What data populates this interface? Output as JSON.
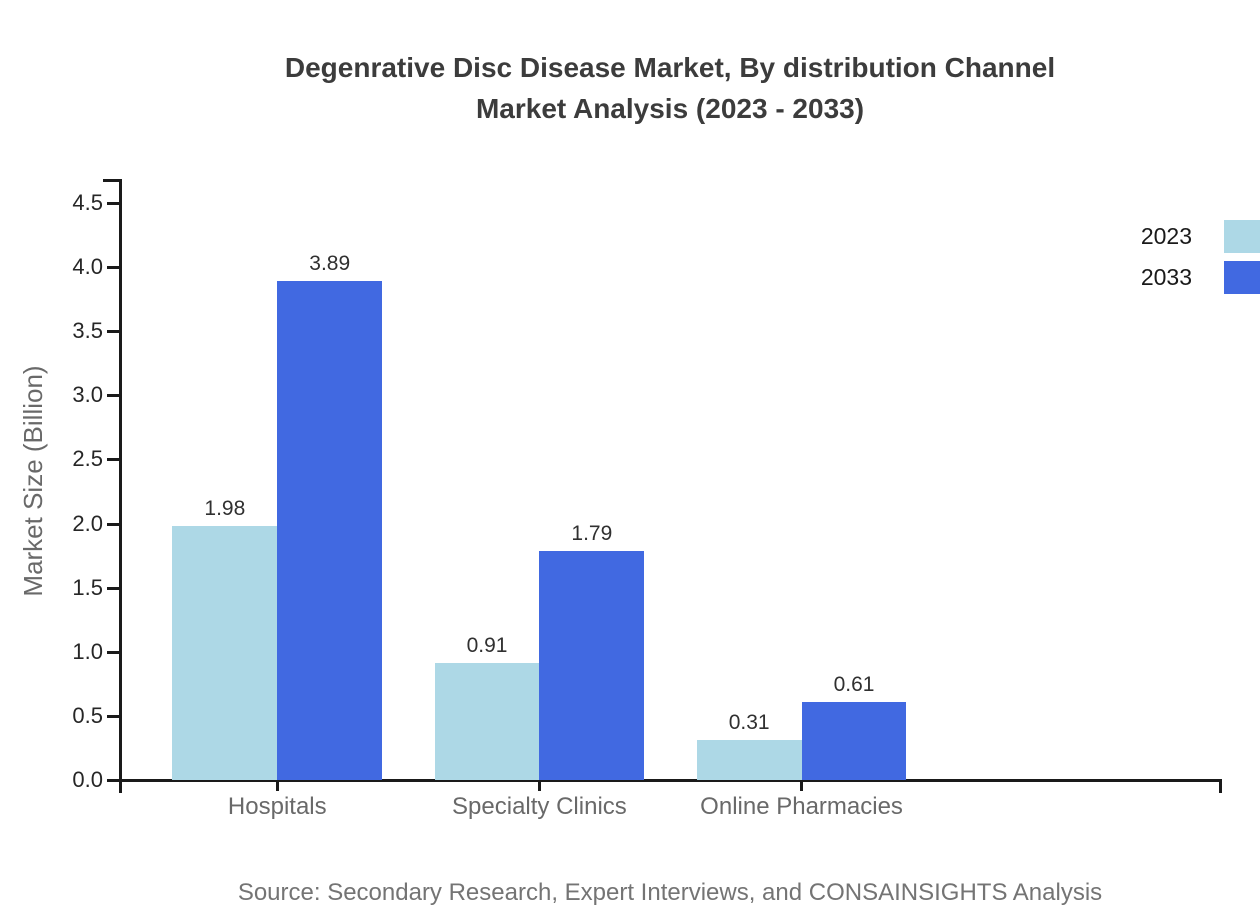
{
  "chart_data": {
    "type": "bar",
    "title": "Degenrative Disc Disease Market, By distribution Channel",
    "subtitle": "Market Analysis (2023 - 2033)",
    "categories": [
      "Hospitals",
      "Specialty Clinics",
      "Online Pharmacies"
    ],
    "series": [
      {
        "name": "2023",
        "color": "#ADD8E6",
        "values": [
          1.98,
          0.91,
          0.31
        ]
      },
      {
        "name": "2033",
        "color": "#4169E1",
        "values": [
          3.89,
          1.79,
          0.61
        ]
      }
    ],
    "ylabel": "Market Size (Billion)",
    "ylim": [
      0,
      4.68
    ],
    "yticks": [
      0,
      0.5,
      1,
      1.5,
      2,
      2.5,
      3,
      3.5,
      4,
      4.5
    ],
    "ytick_decimals": 1,
    "value_label_decimals": 2,
    "grid": false,
    "legend_position": "upper right",
    "axis_color": "#1a1a1a",
    "source": "Source: Secondary Research, Expert Interviews, and CONSAINSIGHTS Analysis"
  }
}
